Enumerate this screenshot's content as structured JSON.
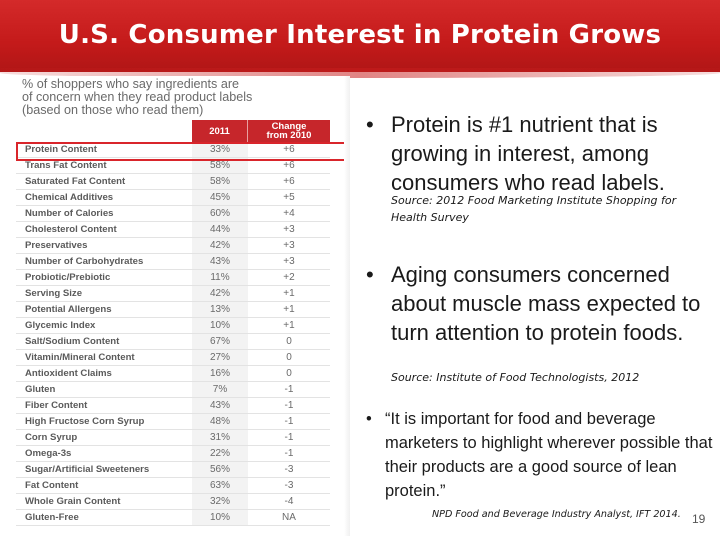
{
  "slide": {
    "title": "U.S. Consumer Interest in Protein Grows",
    "page_number": "19"
  },
  "table": {
    "caption_lines": [
      "% of shoppers who say ingredients are",
      "of concern when they read product labels",
      "(based on those who read them)"
    ],
    "headers": {
      "year": "2011",
      "change_line1": "Change",
      "change_line2": "from 2010"
    },
    "highlight_color": "#d9252b",
    "header_color": "#c6262b",
    "rows": [
      {
        "name": "Protein Content",
        "year": "33%",
        "change": "+6"
      },
      {
        "name": "Trans Fat Content",
        "year": "58%",
        "change": "+6"
      },
      {
        "name": "Saturated Fat Content",
        "year": "58%",
        "change": "+6"
      },
      {
        "name": "Chemical Additives",
        "year": "45%",
        "change": "+5"
      },
      {
        "name": "Number of Calories",
        "year": "60%",
        "change": "+4"
      },
      {
        "name": "Cholesterol Content",
        "year": "44%",
        "change": "+3"
      },
      {
        "name": "Preservatives",
        "year": "42%",
        "change": "+3"
      },
      {
        "name": "Number of Carbohydrates",
        "year": "43%",
        "change": "+3"
      },
      {
        "name": "Probiotic/Prebiotic",
        "year": "11%",
        "change": "+2"
      },
      {
        "name": "Serving Size",
        "year": "42%",
        "change": "+1"
      },
      {
        "name": "Potential Allergens",
        "year": "13%",
        "change": "+1"
      },
      {
        "name": "Glycemic Index",
        "year": "10%",
        "change": "+1"
      },
      {
        "name": "Salt/Sodium Content",
        "year": "67%",
        "change": "0"
      },
      {
        "name": "Vitamin/Mineral Content",
        "year": "27%",
        "change": "0"
      },
      {
        "name": "Antioxident Claims",
        "year": "16%",
        "change": "0"
      },
      {
        "name": "Gluten",
        "year": "7%",
        "change": "-1"
      },
      {
        "name": "Fiber Content",
        "year": "43%",
        "change": "-1"
      },
      {
        "name": "High Fructose Corn Syrup",
        "year": "48%",
        "change": "-1"
      },
      {
        "name": "Corn Syrup",
        "year": "31%",
        "change": "-1"
      },
      {
        "name": "Omega-3s",
        "year": "22%",
        "change": "-1"
      },
      {
        "name": "Sugar/Artificial Sweeteners",
        "year": "56%",
        "change": "-3"
      },
      {
        "name": "Fat Content",
        "year": "63%",
        "change": "-3"
      },
      {
        "name": "Whole Grain Content",
        "year": "32%",
        "change": "-4"
      },
      {
        "name": "Gluten-Free",
        "year": "10%",
        "change": "NA"
      }
    ]
  },
  "bullets": {
    "b1": {
      "text": "Protein is #1 nutrient that is growing in interest, among consumers who read labels.",
      "source": "Source: 2012 Food Marketing Institute Shopping for Health Survey"
    },
    "b2": {
      "text": "Aging consumers concerned about muscle mass expected to turn attention to protein foods.",
      "source": "Source: Institute of Food Technologists, 2012"
    },
    "b3": {
      "text": "“It is important for food and beverage marketers to highlight wherever possible that their products are a good source of lean protein.”",
      "source": "NPD Food and Beverage Industry Analyst, IFT 2014."
    },
    "marker": "•"
  }
}
